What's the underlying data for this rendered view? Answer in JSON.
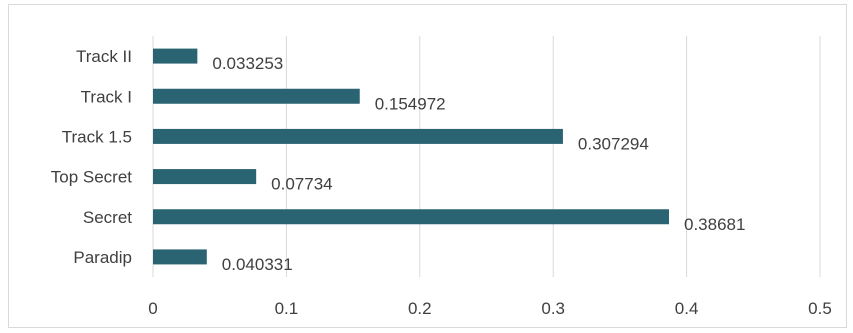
{
  "chart_data": {
    "type": "bar",
    "orientation": "horizontal",
    "categories": [
      "Paradip",
      "Secret",
      "Top Secret",
      "Track 1.5",
      "Track I",
      "Track II"
    ],
    "values": [
      0.040331,
      0.38681,
      0.07734,
      0.307294,
      0.154972,
      0.033253
    ],
    "data_labels": [
      "0.040331",
      "0.38681",
      "0.07734",
      "0.307294",
      "0.154972",
      "0.033253"
    ],
    "x_ticks": [
      "0",
      "0.1",
      "0.2",
      "0.3",
      "0.4",
      "0.5"
    ],
    "xlim": [
      0,
      0.5
    ],
    "title": "",
    "xlabel": "",
    "ylabel": "",
    "grid": "vertical",
    "legend": "none",
    "bar_color": "#2a6472",
    "grid_color": "#d9d9d9"
  }
}
